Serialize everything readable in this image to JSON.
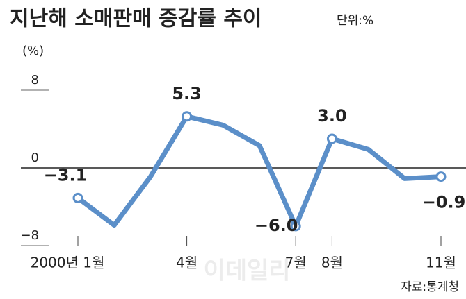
{
  "chart_data": {
    "type": "line",
    "title": "지난해 소매판매 증감률 추이",
    "subtitle": "단위:%",
    "y_label": "(%)",
    "source": "자료:통계청",
    "watermark": "이데일리",
    "categories": [
      "2000년 1월",
      null,
      null,
      "4월",
      null,
      null,
      "7월",
      "8월",
      null,
      null,
      "11월"
    ],
    "series": [
      {
        "name": "소매판매 증감률",
        "color": "#5b8fc9",
        "values": [
          -3.1,
          -5.9,
          -0.9,
          5.3,
          4.4,
          2.3,
          -6.0,
          3.0,
          1.9,
          -1.1,
          -0.9
        ],
        "value_labels": [
          "−3.1",
          null,
          null,
          "5.3",
          null,
          null,
          "−6.0",
          "3.0",
          null,
          null,
          "−0.9"
        ]
      }
    ],
    "ylim": [
      -8,
      8
    ],
    "yticks": [
      8,
      0,
      {
        "value": -8,
        "label": "−8"
      }
    ]
  }
}
